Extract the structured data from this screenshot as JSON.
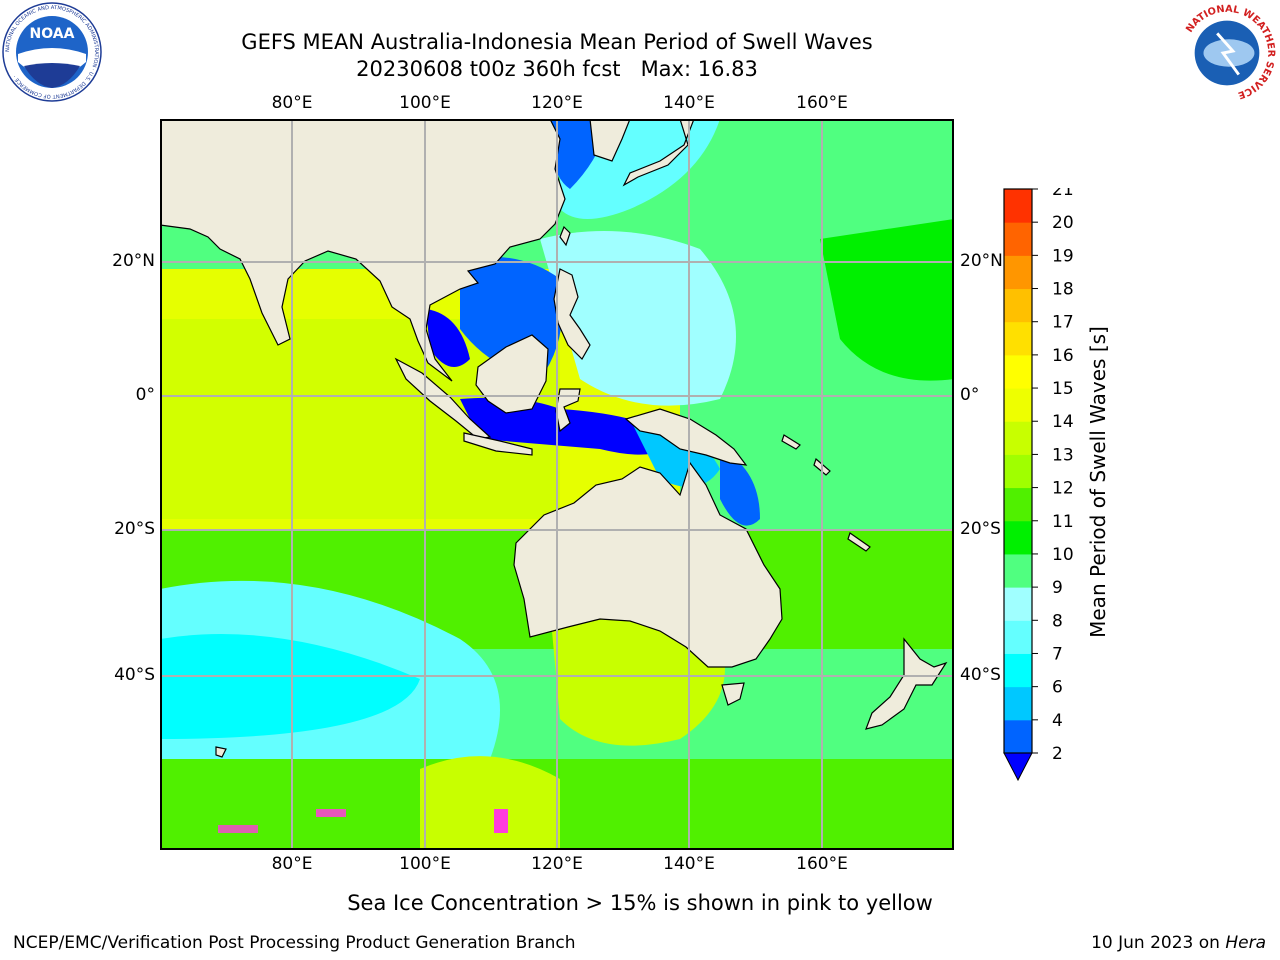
{
  "header": {
    "title_line1": "GEFS MEAN Australia-Indonesia Mean Period of Swell Waves",
    "title_line2": "20230608 t00z 360h fcst   Max: 16.83"
  },
  "map": {
    "lon_labels": [
      "80°E",
      "100°E",
      "120°E",
      "140°E",
      "160°E"
    ],
    "lat_labels": [
      "20°N",
      "0°",
      "20°S",
      "40°S"
    ],
    "land_color": "#efecdc",
    "grid_color": "#b0b0b0"
  },
  "colorbar": {
    "title": "Mean Period of Swell Waves [s]",
    "levels": [
      2,
      4,
      6,
      7,
      8,
      9,
      10,
      11,
      12,
      13,
      14,
      15,
      16,
      17,
      18,
      19,
      20,
      21
    ],
    "labels": [
      "2",
      "4",
      "6",
      "7",
      "8",
      "9",
      "10",
      "11",
      "12",
      "13",
      "14",
      "15",
      "16",
      "17",
      "18",
      "19",
      "20",
      "21"
    ],
    "colors": [
      "#0064ff",
      "#00c8ff",
      "#00ffff",
      "#64ffff",
      "#a0ffff",
      "#50ff80",
      "#00f000",
      "#50f000",
      "#a0ff00",
      "#c8ff00",
      "#eeff00",
      "#ffff00",
      "#ffe000",
      "#ffc000",
      "#ff9600",
      "#ff6400",
      "#ff3200",
      "#ff0000"
    ],
    "under_color": "#0000ff"
  },
  "note": "Sea Ice Concentration > 15% is shown in pink to yellow",
  "footer": {
    "left": "NCEP/EMC/Verification Post Processing Product Generation Branch",
    "date": "10 Jun 2023 on ",
    "host": "Hera"
  },
  "logos": {
    "noaa_text": "NOAA",
    "noaa_ring": "NATIONAL OCEANIC AND ATMOSPHERIC ADMINISTRATION · U.S. DEPARTMENT OF COMMERCE ·",
    "nws_ring": "NATIONAL WEATHER SERVICE"
  }
}
